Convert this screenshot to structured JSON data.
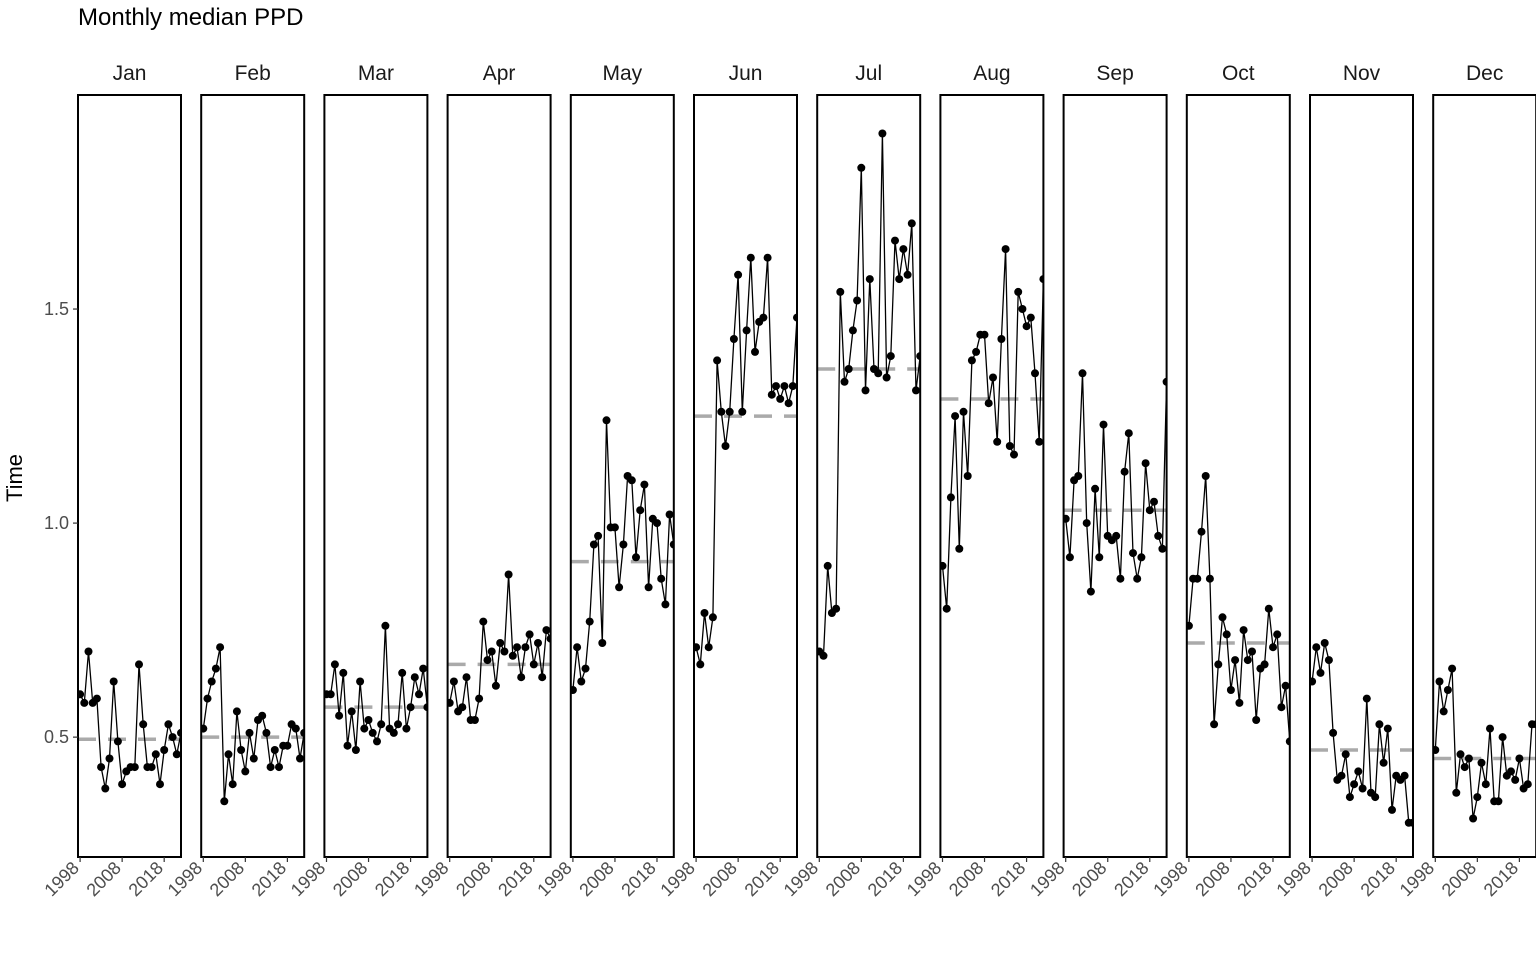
{
  "chart_data": {
    "type": "line",
    "title": "Monthly median PPD",
    "xlabel": "",
    "ylabel": "Time",
    "ylim": [
      0.22,
      2.0
    ],
    "yticks": [
      0.5,
      1.0,
      1.5
    ],
    "ytick_labels": [
      "0.5",
      "1.0",
      "1.5"
    ],
    "xlim": [
      1997.5,
      2022
    ],
    "xticks": [
      1998,
      2008,
      2018
    ],
    "xtick_labels": [
      "1998",
      "2008",
      "2018"
    ],
    "grid": false,
    "legend": "none",
    "colors": {
      "line": "#000000",
      "points": "#000000",
      "median_line": "#aaaaaa",
      "panel_border": "#000000"
    },
    "x_start": 1998,
    "panels": [
      {
        "month": "Jan",
        "median": 0.495,
        "values": [
          0.6,
          0.58,
          0.7,
          0.58,
          0.59,
          0.43,
          0.38,
          0.45,
          0.63,
          0.49,
          0.39,
          0.42,
          0.43,
          0.43,
          0.67,
          0.53,
          0.43,
          0.43,
          0.46,
          0.39,
          0.47,
          0.53,
          0.5,
          0.46,
          0.51
        ]
      },
      {
        "month": "Feb",
        "median": 0.5,
        "values": [
          0.52,
          0.59,
          0.63,
          0.66,
          0.71,
          0.35,
          0.46,
          0.39,
          0.56,
          0.47,
          0.42,
          0.51,
          0.45,
          0.54,
          0.55,
          0.51,
          0.43,
          0.47,
          0.43,
          0.48,
          0.48,
          0.53,
          0.52,
          0.45,
          0.51
        ]
      },
      {
        "month": "Mar",
        "median": 0.57,
        "values": [
          0.6,
          0.6,
          0.67,
          0.55,
          0.65,
          0.48,
          0.56,
          0.47,
          0.63,
          0.52,
          0.54,
          0.51,
          0.49,
          0.53,
          0.76,
          0.52,
          0.51,
          0.53,
          0.65,
          0.52,
          0.57,
          0.64,
          0.6,
          0.66,
          0.57
        ]
      },
      {
        "month": "Apr",
        "median": 0.67,
        "values": [
          0.58,
          0.63,
          0.56,
          0.57,
          0.64,
          0.54,
          0.54,
          0.59,
          0.77,
          0.68,
          0.7,
          0.62,
          0.72,
          0.7,
          0.88,
          0.69,
          0.71,
          0.64,
          0.71,
          0.74,
          0.67,
          0.72,
          0.64,
          0.75,
          0.73
        ]
      },
      {
        "month": "May",
        "median": 0.91,
        "values": [
          0.61,
          0.71,
          0.63,
          0.66,
          0.77,
          0.95,
          0.97,
          0.72,
          1.24,
          0.99,
          0.99,
          0.85,
          0.95,
          1.11,
          1.1,
          0.92,
          1.03,
          1.09,
          0.85,
          1.01,
          1.0,
          0.87,
          0.81,
          1.02,
          0.95
        ]
      },
      {
        "month": "Jun",
        "median": 1.25,
        "values": [
          0.71,
          0.67,
          0.79,
          0.71,
          0.78,
          1.38,
          1.26,
          1.18,
          1.26,
          1.43,
          1.58,
          1.26,
          1.45,
          1.62,
          1.4,
          1.47,
          1.48,
          1.62,
          1.3,
          1.32,
          1.29,
          1.32,
          1.28,
          1.32,
          1.48
        ]
      },
      {
        "month": "Jul",
        "median": 1.36,
        "values": [
          0.7,
          0.69,
          0.9,
          0.79,
          0.8,
          1.54,
          1.33,
          1.36,
          1.45,
          1.52,
          1.83,
          1.31,
          1.57,
          1.36,
          1.35,
          1.91,
          1.34,
          1.39,
          1.66,
          1.57,
          1.64,
          1.58,
          1.7,
          1.31,
          1.39
        ]
      },
      {
        "month": "Aug",
        "median": 1.29,
        "values": [
          0.9,
          0.8,
          1.06,
          1.25,
          0.94,
          1.26,
          1.11,
          1.38,
          1.4,
          1.44,
          1.44,
          1.28,
          1.34,
          1.19,
          1.43,
          1.64,
          1.18,
          1.16,
          1.54,
          1.5,
          1.46,
          1.48,
          1.35,
          1.19,
          1.57
        ]
      },
      {
        "month": "Sep",
        "median": 1.03,
        "values": [
          1.01,
          0.92,
          1.1,
          1.11,
          1.35,
          1.0,
          0.84,
          1.08,
          0.92,
          1.23,
          0.97,
          0.96,
          0.97,
          0.87,
          1.12,
          1.21,
          0.93,
          0.87,
          0.92,
          1.14,
          1.03,
          1.05,
          0.97,
          0.94,
          1.33
        ]
      },
      {
        "month": "Oct",
        "median": 0.72,
        "values": [
          0.76,
          0.87,
          0.87,
          0.98,
          1.11,
          0.87,
          0.53,
          0.67,
          0.78,
          0.74,
          0.61,
          0.68,
          0.58,
          0.75,
          0.68,
          0.7,
          0.54,
          0.66,
          0.67,
          0.8,
          0.71,
          0.74,
          0.57,
          0.62,
          0.49
        ]
      },
      {
        "month": "Nov",
        "median": 0.47,
        "values": [
          0.63,
          0.71,
          0.65,
          0.72,
          0.68,
          0.51,
          0.4,
          0.41,
          0.46,
          0.36,
          0.39,
          0.42,
          0.38,
          0.59,
          0.37,
          0.36,
          0.53,
          0.44,
          0.52,
          0.33,
          0.41,
          0.4,
          0.41,
          0.3,
          0.3
        ]
      },
      {
        "month": "Dec",
        "median": 0.45,
        "values": [
          0.47,
          0.63,
          0.56,
          0.61,
          0.66,
          0.37,
          0.46,
          0.43,
          0.45,
          0.31,
          0.36,
          0.44,
          0.39,
          0.52,
          0.35,
          0.35,
          0.5,
          0.41,
          0.42,
          0.4,
          0.45,
          0.38,
          0.39,
          0.53,
          0.53
        ]
      }
    ]
  }
}
